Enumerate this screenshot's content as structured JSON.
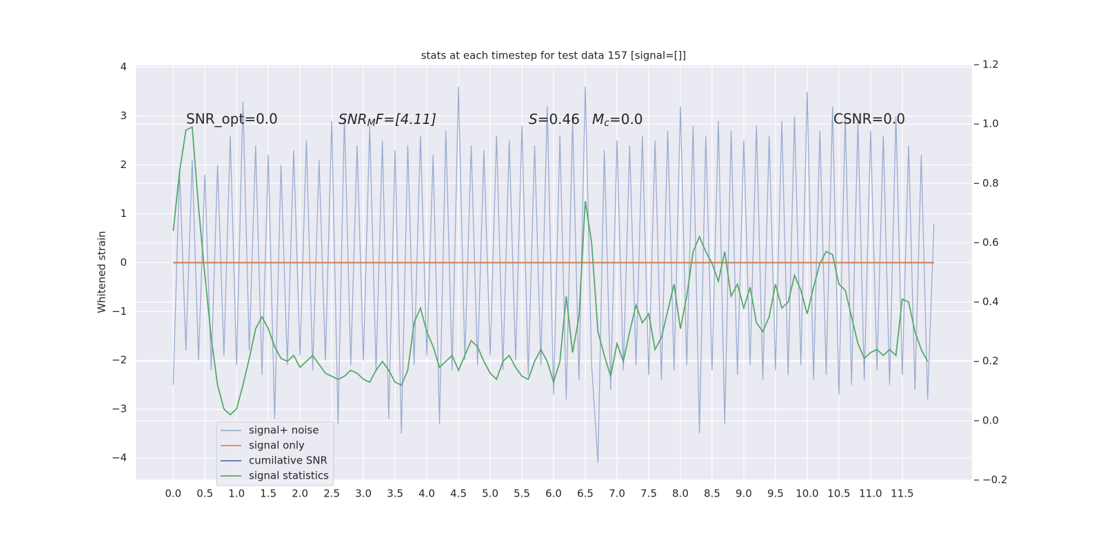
{
  "chart_data": {
    "type": "line",
    "title": "stats at each timestep for test data 157 [signal=[]]",
    "ylabel": "Whitened strain",
    "xlim": [
      -0.59,
      12.6
    ],
    "ylim": [
      -4.45,
      4.05
    ],
    "y2lim": [
      -0.2,
      1.2
    ],
    "grid": true,
    "legend": "lower left",
    "xticks": [
      {
        "value": 0,
        "label": "0.0"
      },
      0.5,
      {
        "value": 1,
        "label": "1.0"
      },
      1.5,
      {
        "value": 2,
        "label": "2.0"
      },
      2.5,
      {
        "value": 3,
        "label": "3.0"
      },
      3.5,
      {
        "value": 4,
        "label": "4.0"
      },
      4.5,
      {
        "value": 5,
        "label": "5.0"
      },
      5.5,
      {
        "value": 6,
        "label": "6.0"
      },
      6.5,
      {
        "value": 7,
        "label": "7.0"
      },
      7.5,
      {
        "value": 8,
        "label": "8.0"
      },
      8.5,
      {
        "value": 9,
        "label": "9.0"
      },
      9.5,
      {
        "value": 10,
        "label": "10.0"
      },
      10.5,
      {
        "value": 11,
        "label": "11.0"
      },
      11.5
    ],
    "yticks": [
      {
        "value": -4,
        "label": "−4"
      },
      {
        "value": -3,
        "label": "−3"
      },
      {
        "value": -2,
        "label": "−2"
      },
      {
        "value": -1,
        "label": "−1"
      },
      0,
      1,
      2,
      3,
      4
    ],
    "y2ticks": [
      {
        "value": -0.2,
        "label": "−0.2"
      },
      {
        "value": 0,
        "label": "0.0"
      },
      0.2,
      0.4,
      0.6,
      0.8,
      {
        "value": 1,
        "label": "1.0"
      },
      1.2
    ],
    "annotations": [
      {
        "text": "SNR_opt=0.0"
      },
      {
        "text": "SNR",
        "sub": "M",
        "rest": "F=[4.11]"
      },
      {
        "text": "S",
        "rest": "=0.46"
      },
      {
        "text": "M",
        "sub": "c",
        "rest": "=0.0"
      },
      {
        "text": "CSNR=0.0"
      }
    ],
    "series": [
      {
        "name": "signal+ noise",
        "color": "#99abd0",
        "x": [
          0,
          0.1,
          0.2,
          0.3,
          0.4,
          0.5,
          0.6,
          0.7,
          0.8,
          0.9,
          1,
          1.1,
          1.2,
          1.3,
          1.4,
          1.5,
          1.6,
          1.7,
          1.8,
          1.9,
          2,
          2.1,
          2.2,
          2.3,
          2.4,
          2.5,
          2.6,
          2.7,
          2.8,
          2.9,
          3,
          3.1,
          3.2,
          3.3,
          3.4,
          3.5,
          3.6,
          3.7,
          3.8,
          3.9,
          4,
          4.1,
          4.2,
          4.3,
          4.4,
          4.5,
          4.6,
          4.7,
          4.8,
          4.9,
          5,
          5.1,
          5.2,
          5.3,
          5.4,
          5.5,
          5.6,
          5.7,
          5.8,
          5.9,
          6,
          6.1,
          6.2,
          6.3,
          6.4,
          6.5,
          6.6,
          6.7,
          6.8,
          6.9,
          7,
          7.1,
          7.2,
          7.3,
          7.4,
          7.5,
          7.6,
          7.7,
          7.8,
          7.9,
          8,
          8.1,
          8.2,
          8.3,
          8.4,
          8.5,
          8.6,
          8.7,
          8.8,
          8.9,
          9,
          9.1,
          9.2,
          9.3,
          9.4,
          9.5,
          9.6,
          9.7,
          9.8,
          9.9,
          10,
          10.1,
          10.2,
          10.3,
          10.4,
          10.5,
          10.6,
          10.7,
          10.8,
          10.9,
          11,
          11.1,
          11.2,
          11.3,
          11.4,
          11.5,
          11.6,
          11.7,
          11.8,
          11.9,
          12
        ],
        "values": [
          -2.5,
          1.9,
          -1.8,
          2.1,
          -2.0,
          1.8,
          -2.2,
          2.0,
          -1.9,
          2.6,
          -2.1,
          3.3,
          -1.8,
          2.4,
          -2.3,
          2.2,
          -3.2,
          2.0,
          -2.1,
          2.3,
          -1.9,
          2.5,
          -2.2,
          2.1,
          -2.0,
          2.9,
          -3.3,
          3.0,
          -2.1,
          2.4,
          -2.0,
          2.8,
          -2.2,
          2.5,
          -3.2,
          2.3,
          -3.5,
          2.4,
          -2.1,
          2.6,
          -1.9,
          2.2,
          -3.3,
          2.7,
          -2.2,
          3.6,
          -2.0,
          2.4,
          -2.1,
          2.3,
          -1.9,
          2.6,
          -2.2,
          2.5,
          -2.0,
          2.8,
          -2.3,
          2.4,
          -2.1,
          3.2,
          -2.7,
          2.6,
          -2.8,
          2.9,
          -2.4,
          3.6,
          -2.1,
          -4.1,
          2.3,
          -2.6,
          2.5,
          -2.2,
          2.4,
          -2.1,
          2.6,
          -2.3,
          2.5,
          -2.4,
          2.7,
          -2.2,
          3.2,
          -2.1,
          2.8,
          -3.5,
          2.6,
          -2.2,
          2.9,
          -3.3,
          2.7,
          -2.3,
          2.5,
          -2.1,
          2.8,
          -2.4,
          2.6,
          -2.2,
          2.9,
          -2.3,
          3.0,
          -2.1,
          3.5,
          -2.4,
          2.7,
          -2.3,
          3.2,
          -2.7,
          3.0,
          -2.5,
          2.9,
          -2.4,
          2.7,
          -2.2,
          2.6,
          -2.5,
          3.0,
          -2.3,
          2.4,
          -2.6,
          2.2,
          -2.8,
          0.8
        ]
      },
      {
        "name": "signal only",
        "color": "#dd8452",
        "x": [
          0,
          12
        ],
        "values": [
          0,
          0
        ]
      },
      {
        "name": "cumilative SNR",
        "color": "#4c72b0",
        "x": [
          0,
          12
        ],
        "values": [
          0,
          0
        ]
      },
      {
        "name": "signal statistics",
        "color": "#55a868",
        "axis": "y2",
        "x": [
          0,
          0.1,
          0.2,
          0.3,
          0.4,
          0.5,
          0.6,
          0.7,
          0.8,
          0.9,
          1,
          1.1,
          1.2,
          1.3,
          1.4,
          1.5,
          1.6,
          1.7,
          1.8,
          1.9,
          2,
          2.1,
          2.2,
          2.3,
          2.4,
          2.5,
          2.6,
          2.7,
          2.8,
          2.9,
          3,
          3.1,
          3.2,
          3.3,
          3.4,
          3.5,
          3.6,
          3.7,
          3.8,
          3.9,
          4,
          4.1,
          4.2,
          4.3,
          4.4,
          4.5,
          4.6,
          4.7,
          4.8,
          4.9,
          5,
          5.1,
          5.2,
          5.3,
          5.4,
          5.5,
          5.6,
          5.7,
          5.8,
          5.9,
          6,
          6.1,
          6.2,
          6.3,
          6.4,
          6.5,
          6.6,
          6.7,
          6.8,
          6.9,
          7,
          7.1,
          7.2,
          7.3,
          7.4,
          7.5,
          7.6,
          7.7,
          7.8,
          7.9,
          8,
          8.1,
          8.2,
          8.3,
          8.4,
          8.5,
          8.6,
          8.7,
          8.8,
          8.9,
          9,
          9.1,
          9.2,
          9.3,
          9.4,
          9.5,
          9.6,
          9.7,
          9.8,
          9.9,
          10,
          10.1,
          10.2,
          10.3,
          10.4,
          10.5,
          10.6,
          10.7,
          10.8,
          10.9,
          11,
          11.1,
          11.2,
          11.3,
          11.4,
          11.5,
          11.6,
          11.7,
          11.8,
          11.9
        ],
        "values": [
          0.64,
          0.84,
          0.98,
          0.99,
          0.72,
          0.49,
          0.28,
          0.12,
          0.04,
          0.02,
          0.04,
          0.12,
          0.21,
          0.31,
          0.35,
          0.31,
          0.25,
          0.21,
          0.2,
          0.22,
          0.18,
          0.2,
          0.22,
          0.19,
          0.16,
          0.15,
          0.14,
          0.15,
          0.17,
          0.16,
          0.14,
          0.13,
          0.17,
          0.2,
          0.17,
          0.13,
          0.12,
          0.17,
          0.33,
          0.38,
          0.3,
          0.25,
          0.18,
          0.2,
          0.22,
          0.17,
          0.22,
          0.27,
          0.25,
          0.2,
          0.16,
          0.14,
          0.2,
          0.22,
          0.18,
          0.15,
          0.14,
          0.2,
          0.24,
          0.2,
          0.13,
          0.2,
          0.42,
          0.23,
          0.35,
          0.74,
          0.6,
          0.3,
          0.22,
          0.15,
          0.26,
          0.2,
          0.3,
          0.39,
          0.33,
          0.36,
          0.24,
          0.28,
          0.37,
          0.46,
          0.31,
          0.42,
          0.57,
          0.62,
          0.57,
          0.53,
          0.47,
          0.57,
          0.42,
          0.46,
          0.38,
          0.45,
          0.33,
          0.3,
          0.35,
          0.46,
          0.38,
          0.4,
          0.49,
          0.44,
          0.36,
          0.45,
          0.53,
          0.57,
          0.56,
          0.46,
          0.44,
          0.35,
          0.26,
          0.21,
          0.23,
          0.24,
          0.22,
          0.24,
          0.22,
          0.41,
          0.4,
          0.3,
          0.24,
          0.2
        ]
      }
    ]
  }
}
